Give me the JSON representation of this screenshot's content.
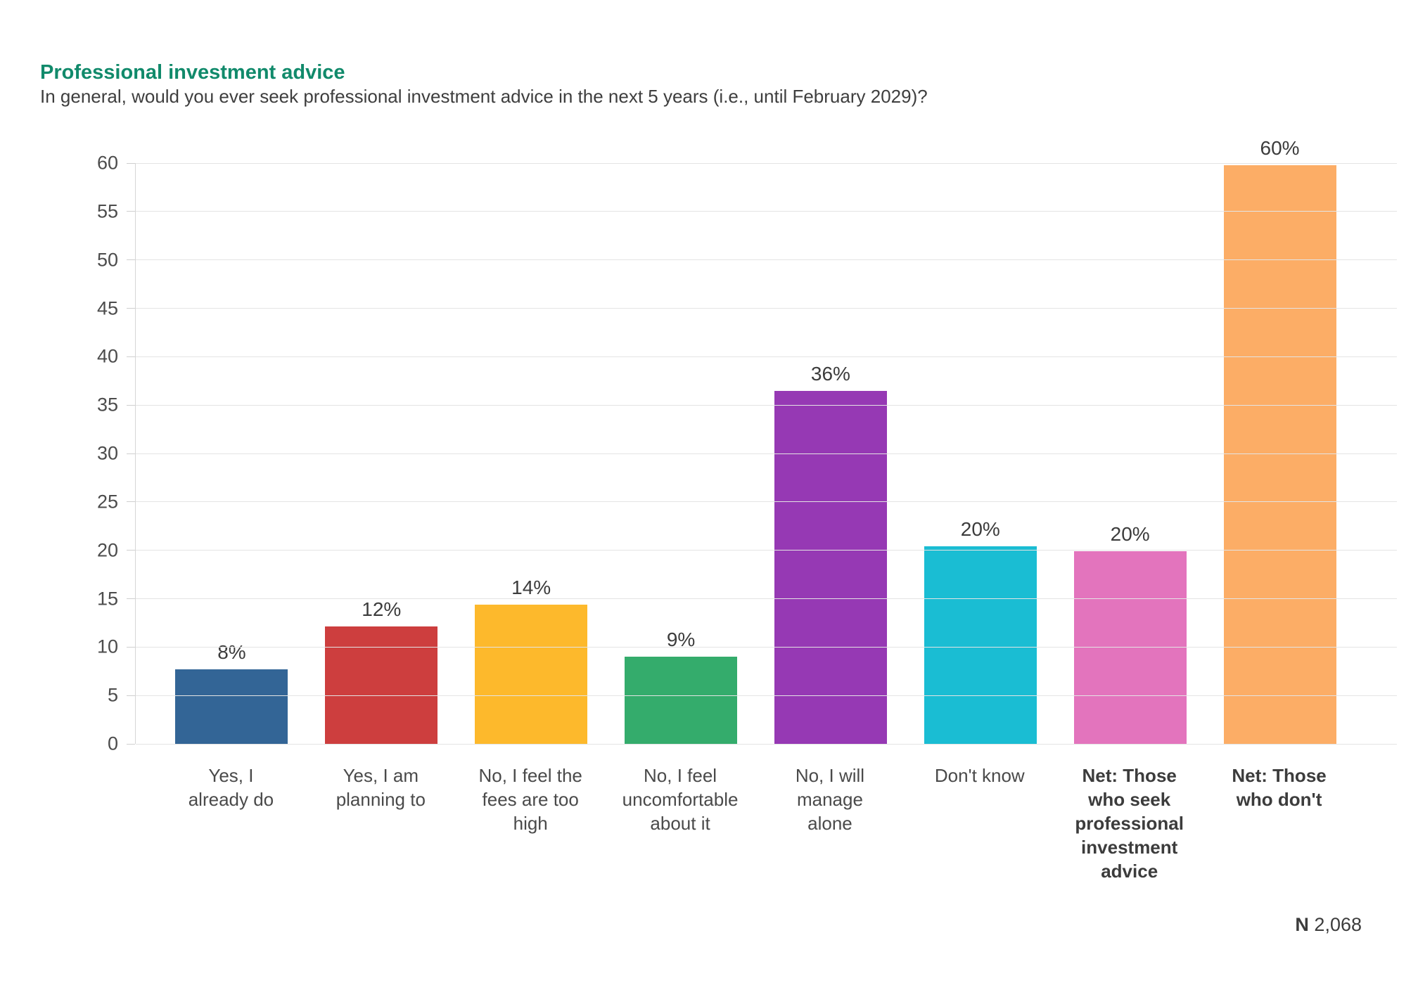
{
  "header": {
    "title": "Professional investment advice",
    "subtitle": "In general, would you ever seek professional investment advice in the next 5 years (i.e., until February 2029)?"
  },
  "chart_data": {
    "type": "bar",
    "title": "Professional investment advice",
    "subtitle": "In general, would you ever seek professional investment advice in the next 5 years (i.e., until February 2029)?",
    "categories": [
      "Yes, I already do",
      "Yes, I am planning to",
      "No, I feel the fees are too high",
      "No, I feel uncomfortable about it",
      "No, I will manage alone",
      "Don't know",
      "Net: Those who seek professional investment advice",
      "Net: Those who don't"
    ],
    "category_lines": [
      [
        "Yes, I",
        "already do"
      ],
      [
        "Yes, I am",
        "planning to"
      ],
      [
        "No, I feel the",
        "fees are too",
        "high"
      ],
      [
        "No, I feel",
        "uncomfortable",
        "about it"
      ],
      [
        "No, I will",
        "manage",
        "alone"
      ],
      [
        "Don't know"
      ],
      [
        "Net: Those",
        "who seek",
        "professional",
        "investment",
        "advice"
      ],
      [
        "Net: Those",
        "who don't"
      ]
    ],
    "bold_categories": [
      false,
      false,
      false,
      false,
      false,
      false,
      true,
      true
    ],
    "values": [
      8,
      12,
      14,
      9,
      36,
      20,
      20,
      60
    ],
    "values_precise": [
      7.7,
      12.1,
      14.4,
      9.0,
      36.5,
      20.4,
      19.9,
      59.8
    ],
    "data_labels": [
      "8%",
      "12%",
      "14%",
      "9%",
      "36%",
      "20%",
      "20%",
      "60%"
    ],
    "unit": "%",
    "ylim": [
      0,
      60
    ],
    "ytick_step": 5,
    "yticks": [
      0,
      5,
      10,
      15,
      20,
      25,
      30,
      35,
      40,
      45,
      50,
      55,
      60
    ],
    "grid": true,
    "legend": false,
    "bar_colors": [
      "#336596",
      "#CD3E3E",
      "#FDB92C",
      "#34AC6C",
      "#9639B4",
      "#1ABDD3",
      "#E374BD",
      "#FCAD66"
    ],
    "sample_size": "N 2,068"
  },
  "footer": {
    "n_label": "N",
    "n_value": "2,068"
  },
  "colors": {
    "title_green": "#118A6B",
    "text_dark": "#3C3C3C",
    "text_muted": "#4C4C4C",
    "gridline": "#E4E4E4",
    "axis_line": "#D6D6D6"
  }
}
